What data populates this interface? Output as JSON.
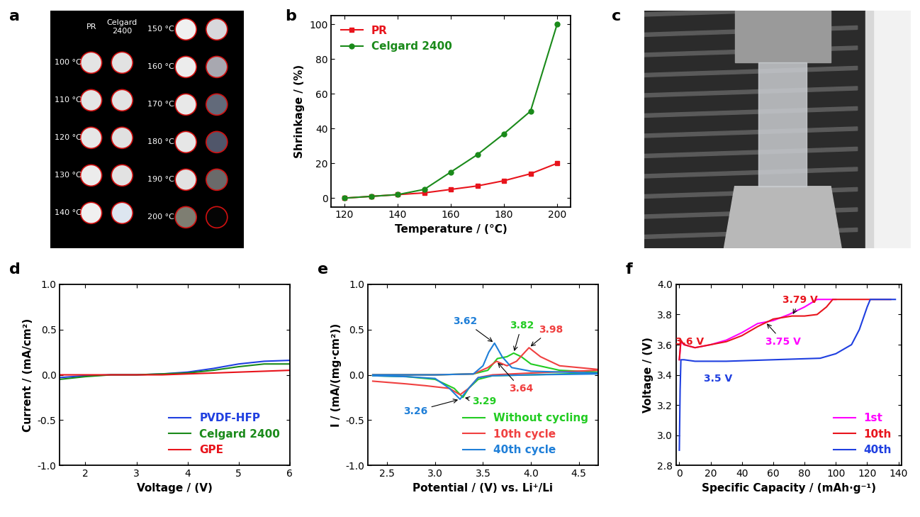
{
  "chart_data": [
    {
      "type": "photo_grid",
      "title": "a",
      "columns": [
        "PR",
        "Celgard 2400"
      ],
      "blocks": [
        [
          {
            "label": "100 °C",
            "colors": [
              "#e4e4e4",
              "#e2e2e2"
            ]
          },
          {
            "label": "110 °C",
            "colors": [
              "#e4e4e4",
              "#e2e2e2"
            ]
          },
          {
            "label": "120 °C",
            "colors": [
              "#e6e6e6",
              "#e0e0e0"
            ]
          },
          {
            "label": "130 °C",
            "colors": [
              "#ececec",
              "#e2e2e2"
            ]
          },
          {
            "label": "140 °C",
            "colors": [
              "#f0f0f0",
              "#dde6f0"
            ]
          }
        ],
        [
          {
            "label": "150 °C",
            "colors": [
              "#f0f0f0",
              "#d8d8dc"
            ]
          },
          {
            "label": "160 °C",
            "colors": [
              "#ececec",
              "#a8a8b0"
            ]
          },
          {
            "label": "170 °C",
            "colors": [
              "#e8e8e8",
              "#626a7a"
            ]
          },
          {
            "label": "180 °C",
            "colors": [
              "#e6e6e6",
              "#50566a"
            ]
          },
          {
            "label": "190 °C",
            "colors": [
              "#e2e2e2",
              "#6a6a6a"
            ]
          },
          {
            "label": "200 °C",
            "colors": [
              "#7e7e72",
              "#050505"
            ]
          }
        ]
      ]
    },
    {
      "type": "line",
      "title": "b",
      "x_label": "Temperature / (°C)",
      "y_label": "Shrinkage / (%)",
      "x": [
        120,
        130,
        140,
        150,
        160,
        170,
        180,
        190,
        200
      ],
      "series": [
        {
          "name": "PR",
          "color": "#e8141c",
          "marker": "square",
          "values": [
            0,
            1,
            2,
            3,
            5,
            7,
            10,
            14,
            20
          ]
        },
        {
          "name": "Celgard 2400",
          "color": "#1a8a1a",
          "marker": "circle",
          "values": [
            0,
            1,
            2,
            5,
            15,
            25,
            37,
            50,
            100
          ]
        }
      ],
      "xlim": [
        115,
        205
      ],
      "xticks": [
        120,
        140,
        160,
        180,
        200
      ],
      "ylim": [
        -5,
        105
      ],
      "yticks": [
        0,
        20,
        40,
        60,
        80,
        100
      ],
      "legend": "upper left"
    },
    {
      "type": "photo",
      "title": "c"
    },
    {
      "type": "line",
      "title": "d",
      "x_label": "Voltage / (V)",
      "y_label": "Current / (mA/cm²)",
      "x": [
        1.5,
        2,
        2.5,
        3,
        3.5,
        4,
        4.5,
        5,
        5.5,
        6
      ],
      "series": [
        {
          "name": "PVDF-HFP",
          "color": "#1f3fe0",
          "values": [
            -0.03,
            -0.01,
            0,
            0,
            0.01,
            0.03,
            0.07,
            0.12,
            0.15,
            0.16
          ]
        },
        {
          "name": "Celgard 2400",
          "color": "#1a8a1a",
          "values": [
            -0.05,
            -0.02,
            0,
            0,
            0.01,
            0.02,
            0.05,
            0.09,
            0.12,
            0.12
          ]
        },
        {
          "name": "GPE",
          "color": "#e8141c",
          "values": [
            0,
            0,
            0,
            0,
            0,
            0.01,
            0.02,
            0.03,
            0.04,
            0.05
          ]
        }
      ],
      "xlim": [
        1.5,
        6
      ],
      "xticks": [
        2,
        3,
        4,
        5,
        6
      ],
      "ylim": [
        -1.0,
        1.0
      ],
      "yticks": [
        -1.0,
        -0.5,
        0.0,
        0.5,
        1.0
      ],
      "legend": "lower right"
    },
    {
      "type": "line",
      "title": "e",
      "x_label": "Potential / (V) vs. Li⁺/Li",
      "y_label": "I / (mA/(mg·cm²))",
      "series": [
        {
          "name": "Without cycling",
          "color": "#22cc22",
          "x": [
            2.35,
            3.0,
            3.4,
            3.55,
            3.65,
            3.75,
            3.82,
            3.9,
            4.0,
            4.3,
            4.7,
            4.7,
            4.0,
            3.6,
            3.45,
            3.35,
            3.29,
            3.2,
            3.0,
            2.7,
            2.35
          ],
          "values": [
            0,
            0,
            0.01,
            0.05,
            0.18,
            0.2,
            0.24,
            0.2,
            0.12,
            0.05,
            0.03,
            0.02,
            0.0,
            -0.01,
            -0.05,
            -0.15,
            -0.25,
            -0.15,
            -0.05,
            -0.02,
            -0.01
          ]
        },
        {
          "name": "10th cycle",
          "color": "#f04040",
          "x": [
            2.35,
            3.0,
            3.4,
            3.55,
            3.64,
            3.75,
            3.85,
            3.98,
            4.1,
            4.3,
            4.7,
            4.7,
            4.0,
            3.6,
            3.45,
            3.35,
            3.26,
            3.15,
            2.9,
            2.7,
            2.35
          ],
          "values": [
            0,
            0,
            0.01,
            0.08,
            0.15,
            0.1,
            0.15,
            0.3,
            0.2,
            0.1,
            0.06,
            0.05,
            0.02,
            0,
            -0.03,
            -0.15,
            -0.22,
            -0.15,
            -0.12,
            -0.1,
            -0.07
          ]
        },
        {
          "name": "40th cycle",
          "color": "#1f7fd8",
          "x": [
            2.35,
            3.0,
            3.4,
            3.5,
            3.56,
            3.62,
            3.7,
            3.8,
            4.0,
            4.7,
            4.7,
            4.0,
            3.6,
            3.45,
            3.35,
            3.26,
            3.15,
            3.0,
            2.7,
            2.35
          ],
          "values": [
            0,
            0,
            0.01,
            0.1,
            0.25,
            0.35,
            0.2,
            0.08,
            0.04,
            0.02,
            0.01,
            0,
            -0.01,
            -0.03,
            -0.15,
            -0.27,
            -0.15,
            -0.04,
            -0.02,
            -0.01
          ]
        }
      ],
      "annotations": [
        {
          "text": "3.62",
          "x": 3.62,
          "y": 0.35,
          "color": "#1f7fd8"
        },
        {
          "text": "3.82",
          "x": 3.82,
          "y": 0.24,
          "color": "#22cc22"
        },
        {
          "text": "3.98",
          "x": 3.98,
          "y": 0.3,
          "color": "#f04040"
        },
        {
          "text": "3.64",
          "x": 3.64,
          "y": 0.15,
          "color": "#f04040"
        },
        {
          "text": "3.26",
          "x": 3.26,
          "y": -0.27,
          "color": "#1f7fd8"
        },
        {
          "text": "3.29",
          "x": 3.29,
          "y": -0.25,
          "color": "#22cc22"
        }
      ],
      "xlim": [
        2.3,
        4.7
      ],
      "xticks": [
        2.5,
        3.0,
        3.5,
        4.0,
        4.5
      ],
      "ylim": [
        -1.0,
        1.0
      ],
      "yticks": [
        -1.0,
        -0.5,
        0.0,
        0.5,
        1.0
      ],
      "legend": "lower right"
    },
    {
      "type": "line",
      "title": "f",
      "x_label": "Specific Capacity / (mAh·g⁻¹)",
      "y_label": "Voltage / (V)",
      "series": [
        {
          "name": "1st",
          "color": "#ff00ff",
          "x": [
            0,
            1,
            3,
            10,
            20,
            30,
            40,
            50,
            55,
            60,
            70,
            80,
            88,
            100
          ],
          "values": [
            3.5,
            3.62,
            3.6,
            3.58,
            3.6,
            3.63,
            3.68,
            3.74,
            3.75,
            3.76,
            3.8,
            3.85,
            3.9,
            3.9
          ]
        },
        {
          "name": "10th",
          "color": "#e8141c",
          "x": [
            0,
            1,
            3,
            10,
            20,
            30,
            40,
            50,
            60,
            66,
            72,
            80,
            88,
            94,
            98,
            135
          ],
          "values": [
            3.5,
            3.63,
            3.6,
            3.58,
            3.6,
            3.62,
            3.66,
            3.72,
            3.77,
            3.78,
            3.79,
            3.79,
            3.8,
            3.85,
            3.9,
            3.9
          ]
        },
        {
          "name": "40th",
          "color": "#1f3fe0",
          "x": [
            0,
            0.5,
            1,
            3,
            10,
            30,
            60,
            90,
            100,
            110,
            115,
            120,
            122,
            138
          ],
          "values": [
            2.9,
            3.3,
            3.5,
            3.5,
            3.49,
            3.49,
            3.5,
            3.51,
            3.54,
            3.6,
            3.7,
            3.85,
            3.9,
            3.9
          ]
        }
      ],
      "annotations": [
        {
          "text": "3.6 V",
          "x": 3,
          "y": 3.62,
          "color": "#e8141c"
        },
        {
          "text": "3.79 V",
          "x": 72,
          "y": 3.79,
          "color": "#e8141c"
        },
        {
          "text": "3.75 V",
          "x": 55,
          "y": 3.75,
          "color": "#ff00ff"
        },
        {
          "text": "3.5 V",
          "x": 30,
          "y": 3.49,
          "color": "#1f3fe0"
        }
      ],
      "xlim": [
        -2,
        142
      ],
      "xticks": [
        0,
        20,
        40,
        60,
        80,
        100,
        120,
        140
      ],
      "ylim": [
        2.8,
        4.0
      ],
      "yticks": [
        2.8,
        3.0,
        3.2,
        3.4,
        3.6,
        3.8,
        4.0
      ],
      "legend": "lower right"
    }
  ]
}
